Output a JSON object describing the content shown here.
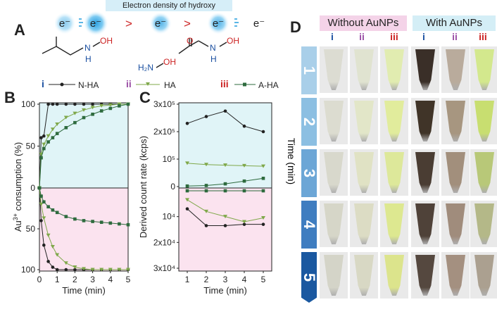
{
  "banner": "Electron density of hydroxy",
  "electrons": [
    "e⁻",
    "e⁻",
    "e⁻",
    "e⁻",
    "e⁻"
  ],
  "gt_symbols": [
    ">",
    ">"
  ],
  "panels": {
    "A": "A",
    "B": "B",
    "C": "C",
    "D": "D"
  },
  "molecules": {
    "nh": "N",
    "h": "H",
    "oh": "OH",
    "h2n": "H₂N",
    "o": "O",
    "n2": "N",
    "h2": "H",
    "oh2": "OH"
  },
  "legend": [
    {
      "roman": "i",
      "label": "N-HA",
      "color": "#222222"
    },
    {
      "roman": "ii",
      "label": "HA",
      "color": "#7fa84a"
    },
    {
      "roman": "iii",
      "label": "A-HA",
      "color": "#2e6b3e"
    }
  ],
  "colors": {
    "accent_red": "#cc2222",
    "roman_i": "#1a4fa0",
    "roman_ii": "#9b4fa5",
    "roman_iii": "#cc2222",
    "top_bg": "#e0f4f7",
    "bottom_bg": "#fbe3ef",
    "without_bg": "#f4d3e8",
    "with_bg": "#d4eef6"
  },
  "panelD": {
    "without": "Without AuNPs",
    "with": "With AuNPs",
    "cols": [
      "i",
      "ii",
      "iii",
      "i",
      "ii",
      "iii"
    ],
    "time_label": "Time (min)",
    "times": [
      "1",
      "2",
      "3",
      "4",
      "5"
    ],
    "tube_colors": [
      [
        "#dcdcd2",
        "#e0e3d0",
        "#e1ecb0",
        "#3a2f28",
        "#b9ab9c",
        "#d3e88d"
      ],
      [
        "#dcdcd0",
        "#e2e6c8",
        "#e1ec9c",
        "#403428",
        "#a79680",
        "#c8de70"
      ],
      [
        "#d8d8cc",
        "#e0e2c4",
        "#dde89a",
        "#4a3d33",
        "#a28f7c",
        "#b8c878"
      ],
      [
        "#d6d6c8",
        "#dcdcc4",
        "#dde890",
        "#4f4239",
        "#a08c7c",
        "#b4b888"
      ],
      [
        "#d4d4c8",
        "#d8d8c4",
        "#dce48c",
        "#55483f",
        "#a49080",
        "#aba090"
      ]
    ]
  },
  "chart_data": [
    {
      "type": "line",
      "title": "B",
      "xlabel": "Time (min)",
      "ylabel": "Au3+ consumption (%)",
      "xlim": [
        0,
        5
      ],
      "x_ticks": [
        "0",
        "1",
        "2",
        "3",
        "4",
        "5"
      ],
      "y_ticks_top": [
        "100",
        "50",
        "0"
      ],
      "y_ticks_bottom": [
        "50",
        "100"
      ],
      "top_series": [
        {
          "name": "N-HA",
          "x": [
            0,
            0.1,
            0.25,
            0.5,
            0.75,
            1,
            1.5,
            2,
            2.5,
            3,
            3.5,
            4,
            4.5,
            5
          ],
          "values": [
            0,
            60,
            62,
            100,
            100,
            100,
            100,
            100,
            100,
            100,
            100,
            100,
            100,
            100
          ]
        },
        {
          "name": "HA",
          "x": [
            0,
            0.1,
            0.25,
            0.5,
            0.75,
            1,
            1.5,
            2,
            2.5,
            3,
            3.5,
            4,
            4.5,
            5
          ],
          "values": [
            0,
            40,
            52,
            62,
            70,
            76,
            84,
            89,
            93,
            96,
            98,
            99,
            100,
            100
          ]
        },
        {
          "name": "A-HA",
          "x": [
            0,
            0.1,
            0.25,
            0.5,
            0.75,
            1,
            1.5,
            2,
            2.5,
            3,
            3.5,
            4,
            4.5,
            5
          ],
          "values": [
            0,
            36,
            47,
            55,
            60,
            65,
            72,
            78,
            84,
            88,
            92,
            95,
            98,
            100
          ]
        }
      ],
      "bottom_series": [
        {
          "name": "N-HA",
          "x": [
            0,
            0.1,
            0.25,
            0.5,
            0.75,
            1,
            1.5,
            2,
            2.5,
            3,
            3.5,
            4,
            4.5,
            5
          ],
          "values": [
            0,
            40,
            70,
            90,
            97,
            100,
            100,
            100,
            100,
            100,
            100,
            100,
            100,
            100
          ]
        },
        {
          "name": "HA",
          "x": [
            0,
            0.1,
            0.25,
            0.5,
            0.75,
            1,
            1.5,
            2,
            2.5,
            3,
            3.5,
            4,
            4.5,
            5
          ],
          "values": [
            0,
            20,
            37,
            58,
            72,
            82,
            92,
            97,
            99,
            100,
            100,
            100,
            100,
            100
          ]
        },
        {
          "name": "A-HA",
          "x": [
            0,
            0.1,
            0.25,
            0.5,
            0.75,
            1,
            1.5,
            2,
            2.5,
            3,
            3.5,
            4,
            4.5,
            5
          ],
          "values": [
            0,
            10,
            17,
            23,
            27,
            30,
            35,
            38,
            40,
            41,
            42,
            43,
            44,
            45
          ]
        }
      ]
    },
    {
      "type": "line",
      "title": "C",
      "xlabel": "Time (min)",
      "ylabel": "Derived count rate (kcps)",
      "x": [
        1,
        2,
        3,
        4,
        5
      ],
      "x_ticks": [
        "1",
        "2",
        "3",
        "4",
        "5"
      ],
      "y_ticks_top": [
        "3x10⁵",
        "2x10⁵",
        "10⁵",
        "0"
      ],
      "y_ticks_bottom": [
        "10⁴",
        "2x10⁴",
        "3x10⁴"
      ],
      "top_series": [
        {
          "name": "N-HA",
          "values": [
            230000,
            255000,
            275000,
            220000,
            200000
          ]
        },
        {
          "name": "HA",
          "values": [
            85000,
            80000,
            78000,
            76000,
            74000
          ]
        },
        {
          "name": "A-HA",
          "values": [
            2000,
            4000,
            10000,
            20000,
            30000
          ]
        }
      ],
      "bottom_series": [
        {
          "name": "N-HA",
          "values": [
            7000,
            13500,
            13500,
            13000,
            13000
          ]
        },
        {
          "name": "HA",
          "values": [
            3500,
            8000,
            10000,
            12000,
            10500
          ]
        },
        {
          "name": "A-HA",
          "values": [
            0,
            0,
            0,
            0,
            0
          ]
        }
      ]
    }
  ]
}
